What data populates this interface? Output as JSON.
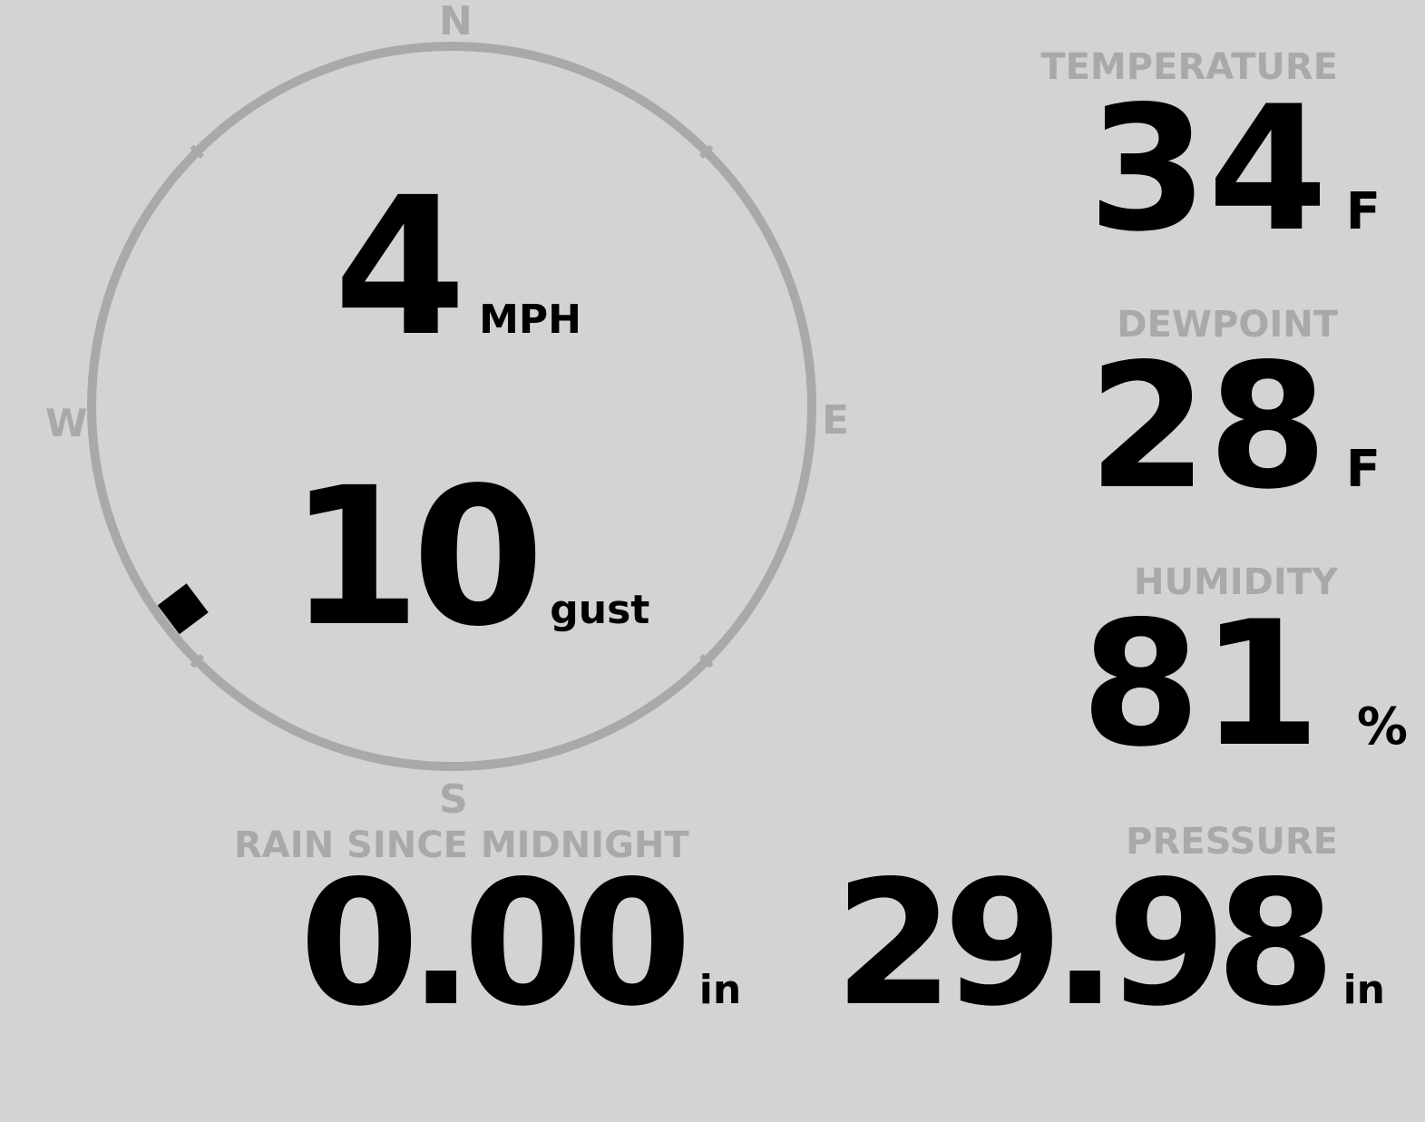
{
  "compass": {
    "north": "N",
    "south": "S",
    "east": "E",
    "west": "W",
    "wind_direction_deg": 233,
    "ring_color": "#a9a9a9",
    "indicator_color": "#000000"
  },
  "wind": {
    "speed": "4",
    "speed_unit": "MPH",
    "gust": "10",
    "gust_unit": "gust"
  },
  "temperature": {
    "label": "TEMPERATURE",
    "value": "34",
    "unit": "F"
  },
  "dewpoint": {
    "label": "DEWPOINT",
    "value": "28",
    "unit": "F"
  },
  "humidity": {
    "label": "HUMIDITY",
    "value": "81",
    "unit": "%"
  },
  "rain": {
    "label": "RAIN SINCE MIDNIGHT",
    "value": "0.00",
    "unit": "in"
  },
  "pressure": {
    "label": "PRESSURE",
    "value": "29.98",
    "unit": "in"
  },
  "colors": {
    "background": "#d3d3d3",
    "label": "#a9a9a9",
    "value": "#000000"
  }
}
